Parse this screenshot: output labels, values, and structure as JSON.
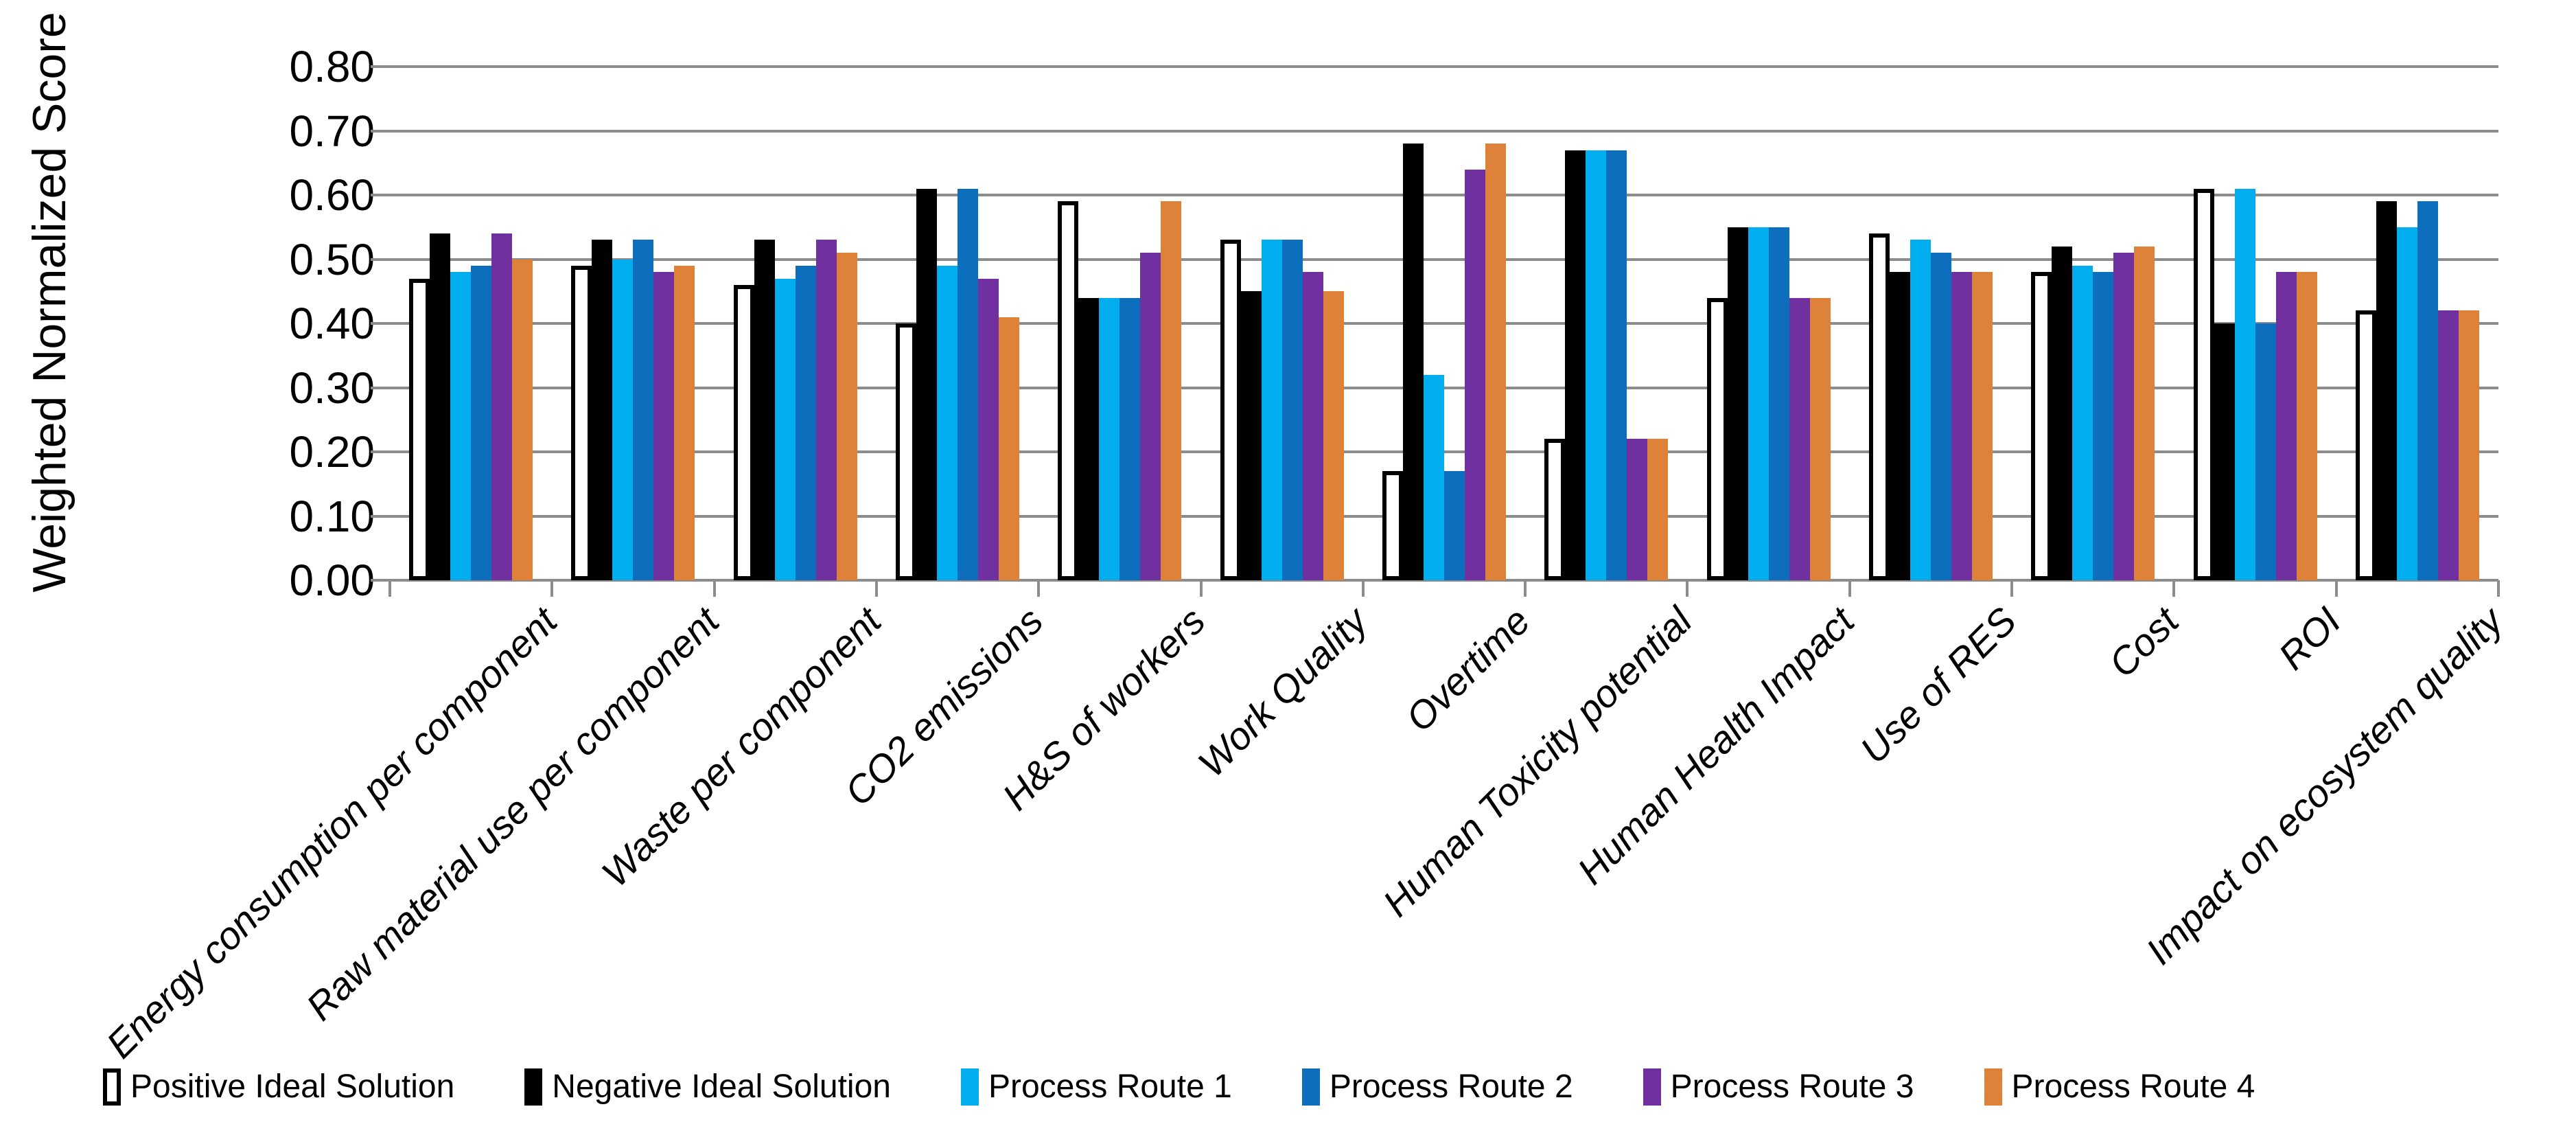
{
  "chart_data": {
    "type": "bar",
    "title": "",
    "xlabel": "",
    "ylabel": "Weighted Normalized Score",
    "ylim": [
      0.0,
      0.8
    ],
    "ytick_step": 0.1,
    "ytick_labels": [
      "0.00",
      "0.10",
      "0.20",
      "0.30",
      "0.40",
      "0.50",
      "0.60",
      "0.70",
      "0.80"
    ],
    "grid": true,
    "legend_position": "bottom",
    "categories": [
      "Energy consumption per component",
      "Raw material use per component",
      "Waste per component",
      "CO2 emissions",
      "H&S of workers",
      "Work Quality",
      "Overtime",
      "Human Toxicity potential",
      "Human Health Impact",
      "Use of RES",
      "Cost",
      "ROI",
      "Impact on ecosystem quality"
    ],
    "series": [
      {
        "name": "Positive Ideal Solution",
        "color": "#FFFFFF",
        "border_color": "#000000",
        "values": [
          0.47,
          0.49,
          0.46,
          0.4,
          0.59,
          0.53,
          0.17,
          0.22,
          0.44,
          0.54,
          0.48,
          0.61,
          0.42
        ]
      },
      {
        "name": "Negative Ideal Solution",
        "color": "#000000",
        "values": [
          0.54,
          0.53,
          0.53,
          0.61,
          0.44,
          0.45,
          0.68,
          0.67,
          0.55,
          0.48,
          0.52,
          0.4,
          0.59
        ]
      },
      {
        "name": "Process Route 1",
        "color": "#00AEEF",
        "values": [
          0.48,
          0.5,
          0.47,
          0.49,
          0.44,
          0.53,
          0.32,
          0.67,
          0.55,
          0.53,
          0.49,
          0.61,
          0.55
        ]
      },
      {
        "name": "Process Route 2",
        "color": "#0D6EBE",
        "values": [
          0.49,
          0.53,
          0.49,
          0.61,
          0.44,
          0.53,
          0.17,
          0.67,
          0.55,
          0.51,
          0.48,
          0.4,
          0.59
        ]
      },
      {
        "name": "Process Route 3",
        "color": "#7030A0",
        "values": [
          0.54,
          0.48,
          0.53,
          0.47,
          0.51,
          0.48,
          0.64,
          0.22,
          0.44,
          0.48,
          0.51,
          0.48,
          0.42
        ]
      },
      {
        "name": "Process Route 4",
        "color": "#DF8239",
        "values": [
          0.5,
          0.49,
          0.51,
          0.41,
          0.59,
          0.45,
          0.68,
          0.22,
          0.44,
          0.48,
          0.52,
          0.48,
          0.42
        ]
      }
    ],
    "grid_color": "#8C8C8C",
    "axis_color": "#8C8C8C"
  }
}
